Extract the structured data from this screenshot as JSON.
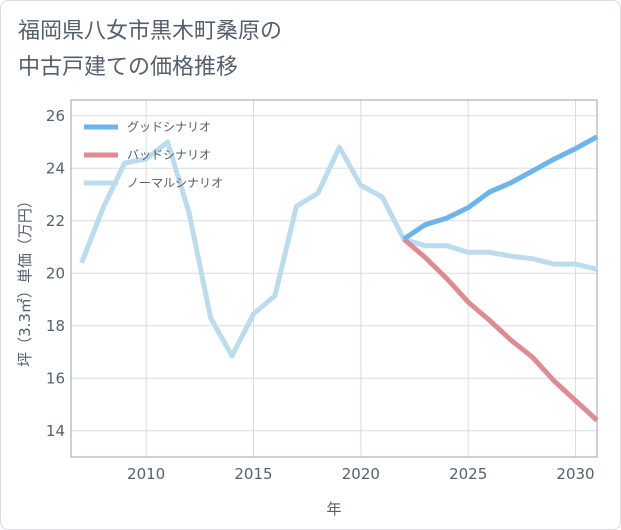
{
  "title_lines": [
    "福岡県八女市黒木町桑原の",
    "中古戸建ての価格推移"
  ],
  "chart_data": {
    "type": "line",
    "title": "福岡県八女市黒木町桑原の中古戸建ての価格推移",
    "xlabel": "年",
    "ylabel": "坪（3.3㎡）単価（万円）",
    "xlim": [
      2006.5,
      2031
    ],
    "ylim": [
      13,
      26.6
    ],
    "x_ticks": [
      2010,
      2015,
      2020,
      2025,
      2030
    ],
    "y_ticks": [
      14,
      16,
      18,
      20,
      22,
      24,
      26
    ],
    "grid": true,
    "legend_position": "top-left",
    "series": [
      {
        "name": "グッドシナリオ",
        "color": "#6cb4ea",
        "x": [
          2022,
          2023,
          2024,
          2025,
          2026,
          2027,
          2028,
          2029,
          2030,
          2031
        ],
        "y": [
          21.3,
          21.85,
          22.1,
          22.5,
          23.1,
          23.45,
          23.9,
          24.35,
          24.75,
          25.2
        ]
      },
      {
        "name": "バッドシナリオ",
        "color": "#dc8c92",
        "x": [
          2022,
          2023,
          2024,
          2025,
          2026,
          2027,
          2028,
          2029,
          2030,
          2031
        ],
        "y": [
          21.3,
          20.6,
          19.8,
          18.9,
          18.2,
          17.45,
          16.8,
          15.9,
          15.15,
          14.4
        ]
      },
      {
        "name": "ノーマルシナリオ",
        "color": "#bcdcee",
        "x": [
          2007,
          2008,
          2009,
          2010,
          2011,
          2012,
          2013,
          2014,
          2015,
          2016,
          2017,
          2018,
          2019,
          2020,
          2021,
          2022,
          2023,
          2024,
          2025,
          2026,
          2027,
          2028,
          2029,
          2030,
          2031
        ],
        "y": [
          20.4,
          22.5,
          24.2,
          24.35,
          25.0,
          22.3,
          18.3,
          16.85,
          18.45,
          19.15,
          22.55,
          23.05,
          24.8,
          23.35,
          22.9,
          21.3,
          21.05,
          21.05,
          20.8,
          20.8,
          20.65,
          20.55,
          20.35,
          20.35,
          20.15
        ]
      }
    ]
  }
}
